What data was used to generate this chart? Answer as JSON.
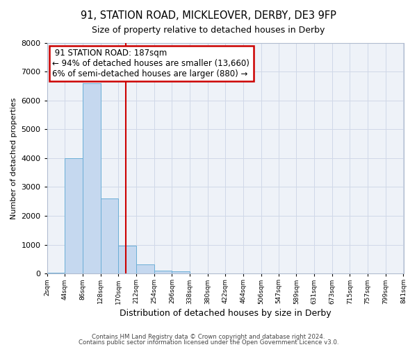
{
  "title": "91, STATION ROAD, MICKLEOVER, DERBY, DE3 9FP",
  "subtitle": "Size of property relative to detached houses in Derby",
  "xlabel": "Distribution of detached houses by size in Derby",
  "ylabel": "Number of detached properties",
  "bin_edges": [
    2,
    44,
    86,
    128,
    170,
    212,
    254,
    296,
    338,
    380,
    422,
    464,
    506,
    547,
    589,
    631,
    673,
    715,
    757,
    799,
    841
  ],
  "bin_labels": [
    "2sqm",
    "44sqm",
    "86sqm",
    "128sqm",
    "170sqm",
    "212sqm",
    "254sqm",
    "296sqm",
    "338sqm",
    "380sqm",
    "422sqm",
    "464sqm",
    "506sqm",
    "547sqm",
    "589sqm",
    "631sqm",
    "673sqm",
    "715sqm",
    "757sqm",
    "799sqm",
    "841sqm"
  ],
  "bar_values": [
    30,
    4000,
    6600,
    2600,
    970,
    330,
    110,
    70,
    0,
    0,
    0,
    0,
    0,
    0,
    0,
    0,
    0,
    0,
    0,
    0
  ],
  "bar_color": "#c5d8ef",
  "bar_edge_color": "#6baed6",
  "property_line_x": 187,
  "property_line_color": "#cc0000",
  "ylim": [
    0,
    8000
  ],
  "yticks": [
    0,
    1000,
    2000,
    3000,
    4000,
    5000,
    6000,
    7000,
    8000
  ],
  "annotation_title": "91 STATION ROAD: 187sqm",
  "annotation_line1": "← 94% of detached houses are smaller (13,660)",
  "annotation_line2": "6% of semi-detached houses are larger (880) →",
  "annotation_box_color": "#cc0000",
  "grid_color": "#d0d8e8",
  "bg_color": "#eef2f8",
  "footer1": "Contains HM Land Registry data © Crown copyright and database right 2024.",
  "footer2": "Contains public sector information licensed under the Open Government Licence v3.0."
}
